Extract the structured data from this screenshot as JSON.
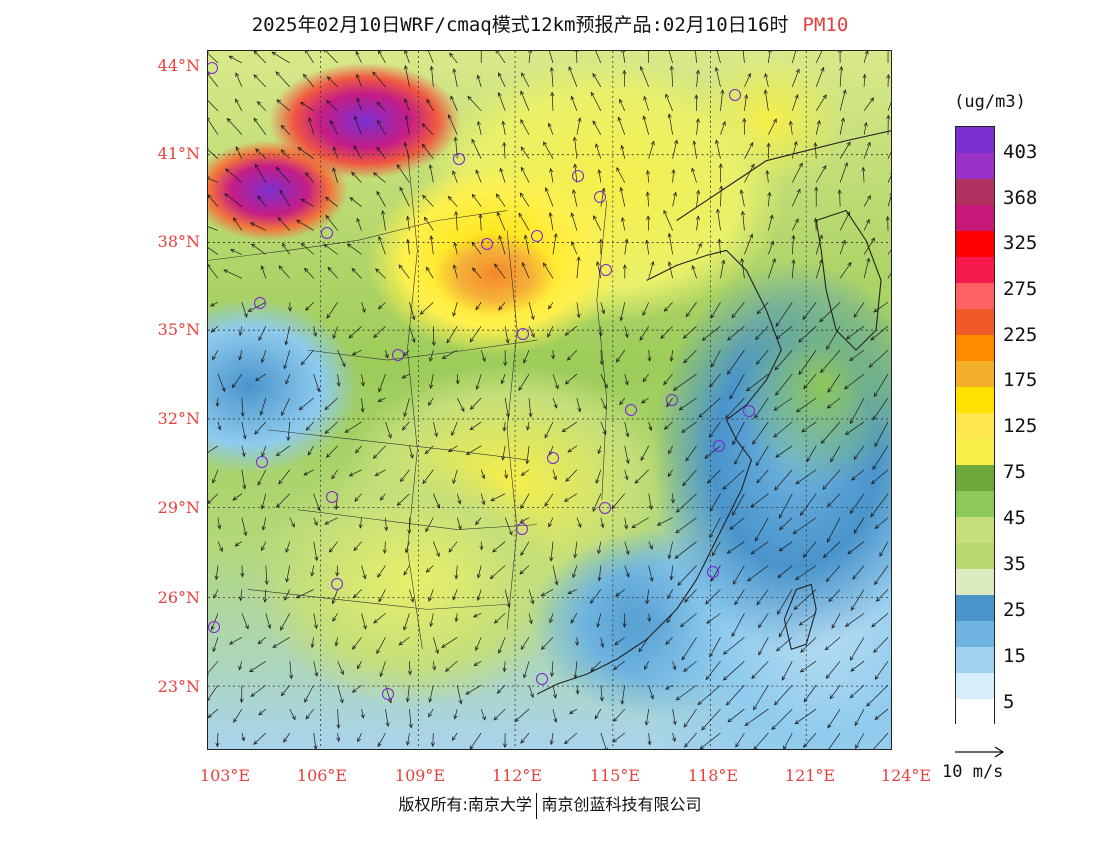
{
  "header": {
    "title": "2025年02月10日WRF/cmaq模式12km预报产品:02月10日16时",
    "species": "PM10"
  },
  "map": {
    "lat_labels": [
      "44°N",
      "41°N",
      "38°N",
      "35°N",
      "32°N",
      "29°N",
      "26°N",
      "23°N"
    ],
    "lon_labels": [
      "103°E",
      "106°E",
      "109°E",
      "112°E",
      "115°E",
      "118°E",
      "121°E",
      "124°E"
    ],
    "city_markers_count": 26
  },
  "colorbar": {
    "units": "(ug/m3)",
    "labels": [
      "403",
      "368",
      "325",
      "275",
      "225",
      "175",
      "125",
      "75",
      "45",
      "35",
      "25",
      "15",
      "5"
    ],
    "colors": [
      "#7b2fd0",
      "#9a32c8",
      "#b03060",
      "#c6197a",
      "#ff0000",
      "#f5194c",
      "#ff6262",
      "#f05a28",
      "#ff8c00",
      "#f6ae2d",
      "#ffe100",
      "#ffe84d",
      "#f7ef4a",
      "#6ca83a",
      "#8fc85a",
      "#c5df7a",
      "#b8d86f",
      "#dcecc1",
      "#4a94cc",
      "#6fb4e0",
      "#9fd3f0",
      "#d6eefb",
      "#ffffff"
    ]
  },
  "vector_ref": {
    "label": "10 m/s"
  },
  "footer": {
    "copyright": "版权所有:南京大学",
    "company": "南京创蓝科技有限公司"
  }
}
